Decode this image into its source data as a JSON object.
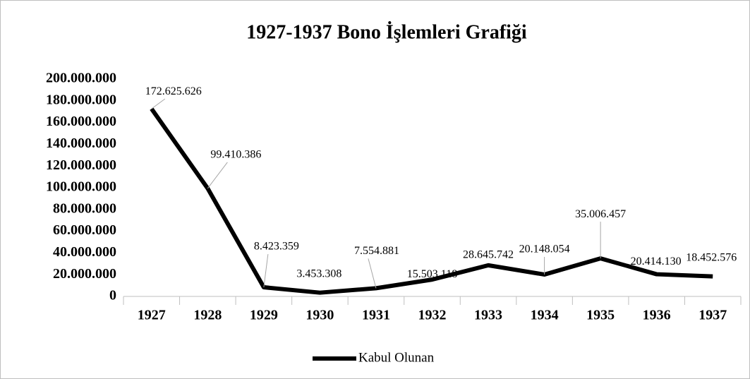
{
  "chart_data": {
    "type": "line",
    "title": "1927-1937 Bono İşlemleri Grafiği",
    "categories": [
      "1927",
      "1928",
      "1929",
      "1930",
      "1931",
      "1932",
      "1933",
      "1934",
      "1935",
      "1936",
      "1937"
    ],
    "series": [
      {
        "name": "Kabul Olunan",
        "color": "#000000",
        "values": [
          172625626,
          99410386,
          8423359,
          3453308,
          7554881,
          15503118,
          28645742,
          20148054,
          35006457,
          20414130,
          18452576
        ],
        "value_labels": [
          "172.625.626",
          "99.410.386",
          "8.423.359",
          "3.453.308",
          "7.554.881",
          "15.503.118",
          "28.645.742",
          "20.148.054",
          "35.006.457",
          "20.414.130",
          "18.452.576"
        ]
      }
    ],
    "ylim": [
      0,
      200000000
    ],
    "yticks": [
      0,
      {
        "value": 20000000,
        "label": "20.000.000"
      },
      {
        "value": 40000000,
        "label": "40.000.000"
      },
      {
        "value": 60000000,
        "label": "60.000.000"
      },
      {
        "value": 80000000,
        "label": "80.000.000"
      },
      {
        "value": 100000000,
        "label": "100.000.000"
      },
      {
        "value": 120000000,
        "label": "120.000.000"
      },
      {
        "value": 140000000,
        "label": "140.000.000"
      },
      {
        "value": 160000000,
        "label": "160.000.000"
      },
      {
        "value": 180000000,
        "label": "180.000.000"
      },
      {
        "value": 200000000,
        "label": "200.000.000"
      }
    ],
    "grid": false,
    "legend": "bottom"
  }
}
